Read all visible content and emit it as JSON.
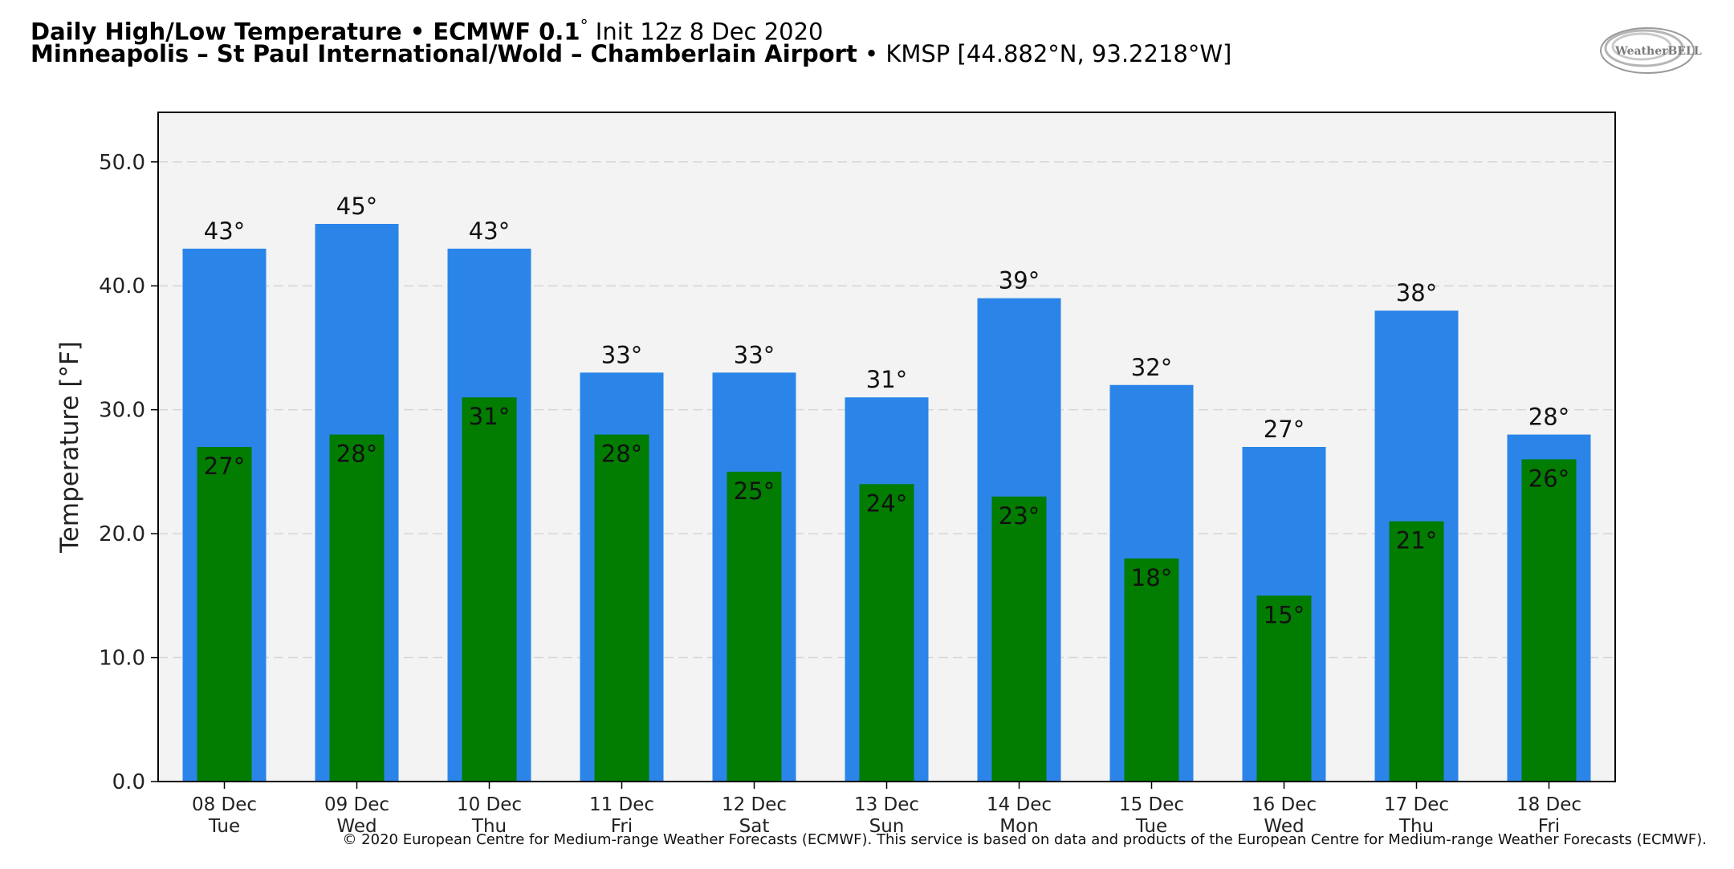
{
  "header": {
    "title_bold": "Daily High/Low Temperature • ECMWF 0.1",
    "title_degree": "°",
    "title_rest": " Init 12z 8 Dec 2020",
    "location_bold": "Minneapolis – St Paul International/Wold – Chamberlain Airport",
    "location_rest": " • KMSP [44.882°N, 93.2218°W]"
  },
  "logo": {
    "text": "WeatherBELL",
    "icon": "weatherbell-logo-icon"
  },
  "footer": {
    "copyright": "© 2020 European Centre for Medium-range Weather Forecasts (ECMWF). This service is based on data and products of the European Centre for Medium-range Weather Forecasts (ECMWF)."
  },
  "chart_data": {
    "type": "bar",
    "ylabel": "Temperature [°F]",
    "xlabel": "",
    "ylim": [
      0,
      54
    ],
    "yticks": [
      0,
      10,
      20,
      30,
      40,
      50
    ],
    "ytick_labels": [
      "0.0",
      "10.0",
      "20.0",
      "30.0",
      "40.0",
      "50.0"
    ],
    "grid": "horizontal dashed",
    "categories": [
      "08 Dec",
      "09 Dec",
      "10 Dec",
      "11 Dec",
      "12 Dec",
      "13 Dec",
      "14 Dec",
      "15 Dec",
      "16 Dec",
      "17 Dec",
      "18 Dec"
    ],
    "weekdays": [
      "Tue",
      "Wed",
      "Thu",
      "Fri",
      "Sat",
      "Sun",
      "Mon",
      "Tue",
      "Wed",
      "Thu",
      "Fri"
    ],
    "series": [
      {
        "values": [
          43,
          45,
          43,
          33,
          33,
          31,
          39,
          32,
          27,
          38,
          28
        ],
        "color": "#2b85e9",
        "labels": [
          "43°",
          "45°",
          "43°",
          "33°",
          "33°",
          "31°",
          "39°",
          "32°",
          "27°",
          "38°",
          "28°"
        ]
      },
      {
        "values": [
          27,
          28,
          31,
          28,
          25,
          24,
          23,
          18,
          15,
          21,
          26
        ],
        "color": "#027c01",
        "labels": [
          "27°",
          "28°",
          "31°",
          "28°",
          "25°",
          "24°",
          "23°",
          "18°",
          "15°",
          "21°",
          "26°"
        ]
      }
    ],
    "plot_background": "#f3f3f3"
  }
}
